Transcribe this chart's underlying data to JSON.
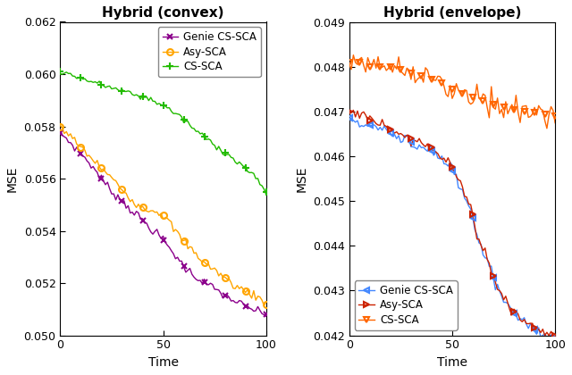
{
  "title_left": "Hybrid (convex)",
  "title_right": "Hybrid (envelope)",
  "xlabel": "Time",
  "ylabel": "MSE",
  "left_ylim": [
    0.05,
    0.062
  ],
  "left_yticks": [
    0.05,
    0.052,
    0.054,
    0.056,
    0.058,
    0.06,
    0.062
  ],
  "right_ylim": [
    0.042,
    0.049
  ],
  "right_yticks": [
    0.042,
    0.043,
    0.044,
    0.045,
    0.046,
    0.047,
    0.048,
    0.049
  ],
  "xlim": [
    0,
    100
  ],
  "xticks": [
    0,
    50,
    100
  ],
  "left_genie_color": "#8B008B",
  "left_asy_color": "#FFA500",
  "left_cs_color": "#22BB00",
  "right_genie_color": "#4488FF",
  "right_asy_color": "#CC2200",
  "right_cs_color": "#FF6600",
  "title_fontsize": 11,
  "label_fontsize": 10,
  "tick_fontsize": 9,
  "legend_fontsize": 8.5,
  "left_genie_x": [
    0,
    1,
    2,
    3,
    4,
    5,
    6,
    7,
    8,
    9,
    10,
    11,
    12,
    13,
    14,
    15,
    16,
    17,
    18,
    19,
    20,
    21,
    22,
    23,
    24,
    25,
    26,
    27,
    28,
    29,
    30,
    31,
    32,
    33,
    34,
    35,
    36,
    37,
    38,
    39,
    40,
    41,
    42,
    43,
    44,
    45,
    46,
    47,
    48,
    49,
    50,
    51,
    52,
    53,
    54,
    55,
    56,
    57,
    58,
    59,
    60,
    61,
    62,
    63,
    64,
    65,
    66,
    67,
    68,
    69,
    70,
    71,
    72,
    73,
    74,
    75,
    76,
    77,
    78,
    79,
    80,
    81,
    82,
    83,
    84,
    85,
    86,
    87,
    88,
    89,
    90,
    91,
    92,
    93,
    94,
    95,
    96,
    97,
    98,
    99,
    100
  ],
  "left_genie_y": [
    0.05775,
    0.0577,
    0.0576,
    0.05752,
    0.05745,
    0.05738,
    0.05728,
    0.0572,
    0.05712,
    0.05705,
    0.05695,
    0.05688,
    0.05678,
    0.0567,
    0.05662,
    0.05652,
    0.05642,
    0.05632,
    0.05622,
    0.05612,
    0.056,
    0.0559,
    0.0558,
    0.0557,
    0.05562,
    0.05553,
    0.05545,
    0.05537,
    0.0553,
    0.05523,
    0.05515,
    0.05507,
    0.055,
    0.05492,
    0.05485,
    0.05477,
    0.0547,
    0.05463,
    0.05455,
    0.05448,
    0.0544,
    0.05432,
    0.05425,
    0.05417,
    0.0541,
    0.05402,
    0.05395,
    0.05388,
    0.05382,
    0.05375,
    0.05365,
    0.05355,
    0.05345,
    0.05335,
    0.05325,
    0.05315,
    0.05305,
    0.05295,
    0.05285,
    0.05275,
    0.05265,
    0.05257,
    0.0525,
    0.05243,
    0.05237,
    0.0523,
    0.05224,
    0.05218,
    0.05213,
    0.05208,
    0.05203,
    0.05198,
    0.05193,
    0.05188,
    0.05183,
    0.05178,
    0.05173,
    0.05168,
    0.05163,
    0.05158,
    0.05152,
    0.05148,
    0.05143,
    0.05139,
    0.05135,
    0.05131,
    0.05127,
    0.05123,
    0.05119,
    0.05115,
    0.0511,
    0.05107,
    0.05104,
    0.05101,
    0.05098,
    0.05095,
    0.05092,
    0.05089,
    0.05086,
    0.05083,
    0.0508
  ],
  "left_asy_x": [
    0,
    10,
    20,
    30,
    40,
    50,
    55,
    60,
    65,
    70,
    75,
    80,
    85,
    90,
    95,
    100
  ],
  "left_asy_y": [
    0.058,
    0.0572,
    0.0564,
    0.0556,
    0.0549,
    0.0546,
    0.0541,
    0.0536,
    0.0532,
    0.0528,
    0.0525,
    0.0522,
    0.0519,
    0.0517,
    0.0515,
    0.0512
  ],
  "left_cs_x": [
    0,
    5,
    10,
    15,
    20,
    25,
    30,
    35,
    40,
    45,
    50,
    55,
    60,
    65,
    70,
    75,
    80,
    85,
    90,
    95,
    100
  ],
  "left_cs_y": [
    0.0601,
    0.05998,
    0.05985,
    0.05972,
    0.0596,
    0.05948,
    0.05936,
    0.05924,
    0.05913,
    0.059,
    0.0588,
    0.05855,
    0.05825,
    0.0579,
    0.0576,
    0.0573,
    0.057,
    0.0567,
    0.0564,
    0.056,
    0.0555
  ],
  "right_genie_x": [
    0,
    1,
    2,
    3,
    4,
    5,
    6,
    7,
    8,
    9,
    10,
    11,
    12,
    13,
    14,
    15,
    16,
    17,
    18,
    19,
    20,
    21,
    22,
    23,
    24,
    25,
    26,
    27,
    28,
    29,
    30,
    31,
    32,
    33,
    34,
    35,
    36,
    37,
    38,
    39,
    40,
    41,
    42,
    43,
    44,
    45,
    46,
    47,
    48,
    49,
    50,
    51,
    52,
    53,
    54,
    55,
    56,
    57,
    58,
    59,
    60,
    61,
    62,
    63,
    64,
    65,
    66,
    67,
    68,
    69,
    70,
    71,
    72,
    73,
    74,
    75,
    76,
    77,
    78,
    79,
    80,
    81,
    82,
    83,
    84,
    85,
    86,
    87,
    88,
    89,
    90,
    91,
    92,
    93,
    94,
    95,
    96,
    97,
    98,
    99,
    100
  ],
  "right_genie_y": [
    0.04685,
    0.04683,
    0.04681,
    0.04679,
    0.04678,
    0.04676,
    0.04675,
    0.04673,
    0.04672,
    0.0467,
    0.04669,
    0.04667,
    0.04666,
    0.04664,
    0.04662,
    0.04661,
    0.04659,
    0.04658,
    0.04656,
    0.04654,
    0.04652,
    0.0465,
    0.04648,
    0.04646,
    0.04644,
    0.04642,
    0.0464,
    0.04638,
    0.04636,
    0.04634,
    0.04632,
    0.0463,
    0.04628,
    0.04626,
    0.04624,
    0.04622,
    0.0462,
    0.04618,
    0.04616,
    0.04614,
    0.04612,
    0.04608,
    0.04604,
    0.046,
    0.04596,
    0.04592,
    0.04588,
    0.04584,
    0.0458,
    0.04576,
    0.04568,
    0.04558,
    0.04548,
    0.04538,
    0.04528,
    0.04518,
    0.04508,
    0.04498,
    0.04488,
    0.04478,
    0.04462,
    0.04445,
    0.04428,
    0.04411,
    0.044,
    0.0439,
    0.04378,
    0.04365,
    0.04352,
    0.0434,
    0.04328,
    0.04318,
    0.04308,
    0.04298,
    0.0429,
    0.04282,
    0.04275,
    0.04268,
    0.04262,
    0.04256,
    0.0425,
    0.04245,
    0.0424,
    0.04236,
    0.04232,
    0.04228,
    0.04225,
    0.04222,
    0.04219,
    0.04216,
    0.04213,
    0.0421,
    0.04208,
    0.04206,
    0.04204,
    0.04202,
    0.042,
    0.04199,
    0.04198,
    0.04197,
    0.04196
  ],
  "right_asy_x": [
    0,
    1,
    2,
    3,
    4,
    5,
    6,
    7,
    8,
    9,
    10,
    11,
    12,
    13,
    14,
    15,
    16,
    17,
    18,
    19,
    20,
    21,
    22,
    23,
    24,
    25,
    26,
    27,
    28,
    29,
    30,
    31,
    32,
    33,
    34,
    35,
    36,
    37,
    38,
    39,
    40,
    41,
    42,
    43,
    44,
    45,
    46,
    47,
    48,
    49,
    50,
    51,
    52,
    53,
    54,
    55,
    56,
    57,
    58,
    59,
    60,
    61,
    62,
    63,
    64,
    65,
    66,
    67,
    68,
    69,
    70,
    71,
    72,
    73,
    74,
    75,
    76,
    77,
    78,
    79,
    80,
    81,
    82,
    83,
    84,
    85,
    86,
    87,
    88,
    89,
    90,
    91,
    92,
    93,
    94,
    95,
    96,
    97,
    98,
    99,
    100
  ],
  "right_asy_y": [
    0.047,
    0.04698,
    0.04696,
    0.04694,
    0.04692,
    0.0469,
    0.04688,
    0.04686,
    0.04684,
    0.04682,
    0.0468,
    0.04678,
    0.04676,
    0.04674,
    0.04672,
    0.0467,
    0.04668,
    0.04666,
    0.04664,
    0.04662,
    0.0466,
    0.04658,
    0.04656,
    0.04654,
    0.04652,
    0.0465,
    0.04648,
    0.04646,
    0.04644,
    0.04642,
    0.0464,
    0.04638,
    0.04636,
    0.04634,
    0.04632,
    0.0463,
    0.04628,
    0.04626,
    0.04624,
    0.04622,
    0.0462,
    0.04616,
    0.04612,
    0.04608,
    0.04604,
    0.046,
    0.04596,
    0.04592,
    0.04588,
    0.04584,
    0.04576,
    0.04566,
    0.04556,
    0.04546,
    0.04536,
    0.04526,
    0.04516,
    0.04506,
    0.04496,
    0.04486,
    0.0447,
    0.04453,
    0.04436,
    0.04419,
    0.04406,
    0.04394,
    0.04382,
    0.04369,
    0.04356,
    0.04344,
    0.04332,
    0.04322,
    0.04312,
    0.04302,
    0.04294,
    0.04286,
    0.04279,
    0.04272,
    0.04266,
    0.0426,
    0.04254,
    0.04249,
    0.04244,
    0.0424,
    0.04236,
    0.04232,
    0.04229,
    0.04226,
    0.04223,
    0.0422,
    0.04217,
    0.04214,
    0.04212,
    0.0421,
    0.04208,
    0.04206,
    0.04204,
    0.04202,
    0.04201,
    0.042,
    0.04199
  ],
  "right_cs_x": [
    0,
    2,
    4,
    6,
    8,
    10,
    12,
    14,
    16,
    18,
    20,
    22,
    24,
    26,
    28,
    30,
    32,
    34,
    36,
    38,
    40,
    42,
    44,
    46,
    48,
    50,
    52,
    54,
    56,
    58,
    60,
    62,
    64,
    66,
    68,
    70,
    72,
    74,
    76,
    78,
    80,
    82,
    84,
    86,
    88,
    90,
    92,
    94,
    96,
    98,
    100
  ],
  "right_cs_y": [
    0.0481,
    0.04815,
    0.04808,
    0.04812,
    0.04805,
    0.048,
    0.04803,
    0.04798,
    0.04802,
    0.04796,
    0.048,
    0.04795,
    0.04792,
    0.04796,
    0.0479,
    0.04785,
    0.04788,
    0.04782,
    0.04778,
    0.04775,
    0.04772,
    0.04768,
    0.04765,
    0.04762,
    0.04758,
    0.0475,
    0.04745,
    0.0474,
    0.04738,
    0.04735,
    0.04732,
    0.04728,
    0.04725,
    0.04722,
    0.04718,
    0.04715,
    0.04712,
    0.0471,
    0.04708,
    0.04705,
    0.04703,
    0.04701,
    0.047,
    0.047,
    0.04698,
    0.04697,
    0.04695,
    0.04695,
    0.04693,
    0.04692,
    0.0469
  ]
}
